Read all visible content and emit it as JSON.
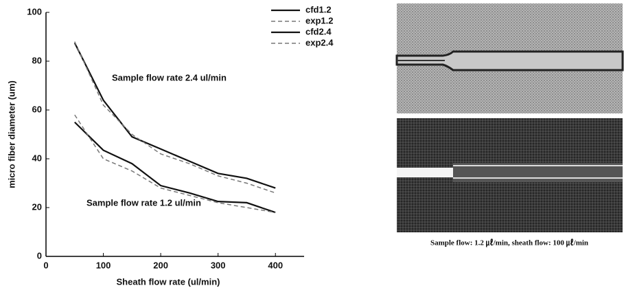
{
  "chart_data": {
    "type": "line",
    "x_label": "Sheath flow rate (ul/min)",
    "y_label": "micro fiber diameter (um)",
    "annotations": [
      "Sample flow rate 2.4 ul/min",
      "Sample flow rate 1.2 ul/min"
    ],
    "x": [
      50,
      100,
      150,
      200,
      250,
      300,
      350,
      400
    ],
    "series": [
      {
        "name": "cfd1.2",
        "color": "#111111",
        "style": "solid",
        "values": [
          55,
          43.5,
          38,
          29,
          26,
          22.5,
          22,
          18
        ]
      },
      {
        "name": "exp1.2",
        "color": "#777777",
        "style": "dashed",
        "values": [
          58,
          40,
          35,
          28,
          25,
          22,
          20,
          18
        ]
      },
      {
        "name": "cfd2.4",
        "color": "#111111",
        "style": "solid",
        "values": [
          87.5,
          64,
          49,
          44,
          39,
          34,
          32,
          28
        ]
      },
      {
        "name": "exp2.4",
        "color": "#777777",
        "style": "dashed",
        "values": [
          88,
          62,
          50,
          42,
          38,
          33,
          30,
          26
        ]
      }
    ],
    "xlim": [
      0,
      450
    ],
    "xticks": [
      0,
      100,
      200,
      300,
      400
    ],
    "ylim": [
      0,
      100
    ],
    "yticks": [
      0,
      20,
      40,
      60,
      80,
      100
    ],
    "grid": false,
    "legend": "top-right",
    "caption": "Sample flow: 1.2 ㎕/min, sheath flow: 100 ㎕/min"
  }
}
